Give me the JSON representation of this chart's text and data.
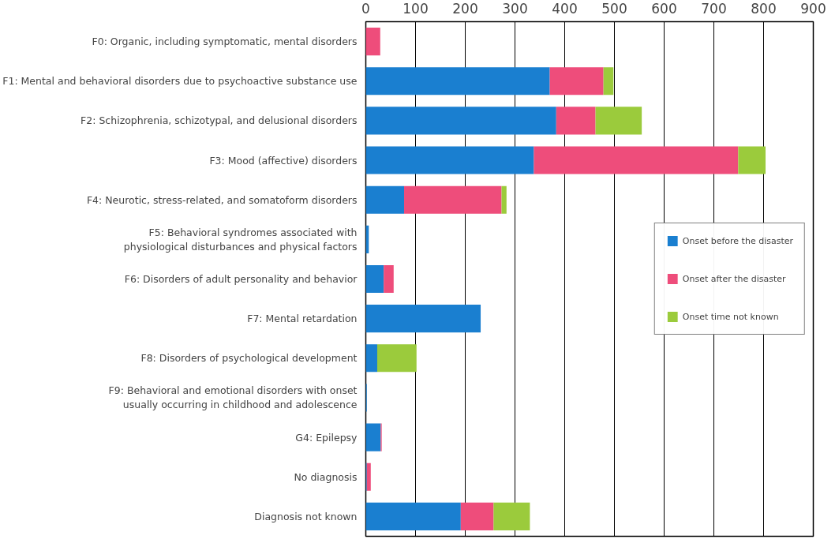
{
  "chart_data": {
    "type": "bar",
    "orientation": "horizontal",
    "stacked": true,
    "categories": [
      "F0: Organic, including symptomatic, mental disorders",
      "F1: Mental and behavioral disorders due to psychoactive substance use",
      "F2: Schizophrenia, schizotypal, and delusional disorders",
      "F3: Mood (affective) disorders",
      "F4: Neurotic, stress-related, and somatoform disorders",
      "F5: Behavioral syndromes associated with physiological disturbances and physical factors",
      "F6: Disorders of adult personality and behavior",
      "F7: Mental retardation",
      "F8: Disorders of psychological development",
      "F9: Behavioral and emotional disorders with onset usually occurring in childhood and adolescence",
      "G4: Epilepsy",
      "No diagnosis",
      "Diagnosis not known"
    ],
    "series": [
      {
        "name": "Onset before the disaster",
        "color": "#1a7fd0",
        "values": [
          0,
          370,
          383,
          338,
          77,
          6,
          36,
          231,
          23,
          2,
          30,
          2,
          191
        ]
      },
      {
        "name": "Onset after the disaster",
        "color": "#ee4d7b",
        "values": [
          29,
          108,
          79,
          411,
          196,
          0,
          20,
          0,
          0,
          0,
          2,
          8,
          66
        ]
      },
      {
        "name": "Onset time not known",
        "color": "#9bcb3c",
        "values": [
          0,
          20,
          93,
          55,
          10,
          0,
          0,
          0,
          79,
          0,
          0,
          0,
          73
        ]
      }
    ],
    "xlim": [
      0,
      900
    ],
    "xticks": [
      0,
      100,
      200,
      300,
      400,
      500,
      600,
      700,
      800,
      900
    ],
    "grid": "x",
    "legend": "right"
  }
}
